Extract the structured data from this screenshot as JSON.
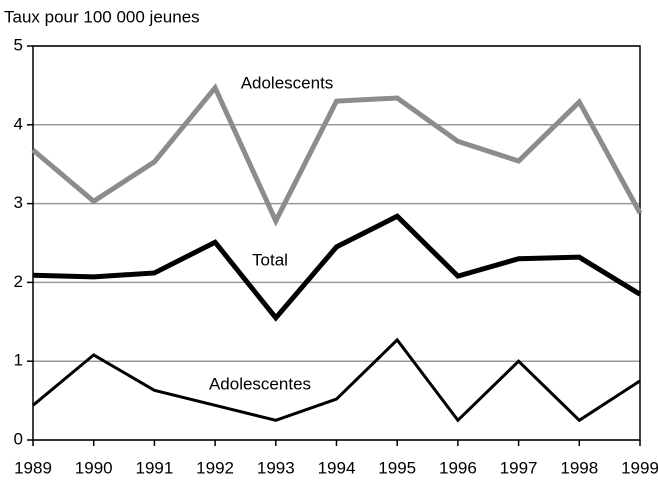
{
  "chart_data": {
    "type": "line",
    "y_label": "Taux pour 100 000 jeunes",
    "x": [
      1989,
      1990,
      1991,
      1992,
      1993,
      1994,
      1995,
      1996,
      1997,
      1998,
      1999
    ],
    "xlim": [
      1989,
      1999
    ],
    "xticks": [
      1989,
      1990,
      1991,
      1992,
      1993,
      1994,
      1995,
      1996,
      1997,
      1998,
      1999
    ],
    "ylim": [
      0,
      5
    ],
    "yticks": [
      0,
      1,
      2,
      3,
      4,
      5
    ],
    "grid": true,
    "series": [
      {
        "name": "Adolescents",
        "color": "#8c8c8c",
        "values": [
          3.68,
          3.03,
          3.53,
          4.47,
          2.78,
          4.3,
          4.34,
          3.79,
          3.54,
          4.29,
          2.88
        ]
      },
      {
        "name": "Total",
        "color": "#000000",
        "values": [
          2.09,
          2.07,
          2.12,
          2.51,
          1.55,
          2.45,
          2.84,
          2.08,
          2.3,
          2.32,
          1.85
        ]
      },
      {
        "name": "Adolescentes",
        "color": "#000000",
        "values": [
          0.44,
          1.08,
          0.63,
          0.44,
          0.25,
          0.52,
          1.27,
          0.25,
          1.0,
          0.25,
          0.75
        ]
      }
    ]
  }
}
